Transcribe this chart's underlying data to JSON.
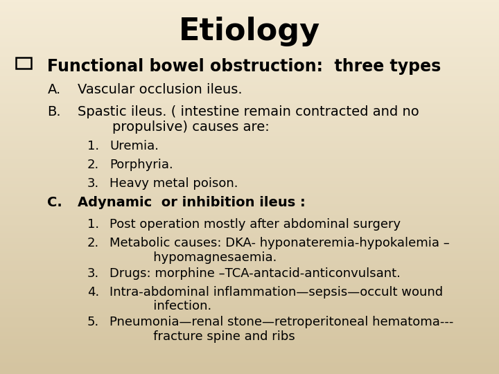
{
  "title": "Etiology",
  "background_color_top": "#f5ecd7",
  "background_color_bottom": "#d4c4a0",
  "title_fontsize": 32,
  "title_fontweight": "bold",
  "text_color": "#000000",
  "content": [
    {
      "level": 0,
      "prefix": "q",
      "text": "Functional bowel obstruction:  three types",
      "bold": true,
      "fontsize": 17
    },
    {
      "level": 1,
      "prefix": "A.",
      "text": "Vascular occlusion ileus.",
      "bold": false,
      "fontsize": 14
    },
    {
      "level": 1,
      "prefix": "B.",
      "text": "Spastic ileus. ( intestine remain contracted and no\n        propulsive) causes are:",
      "bold": false,
      "fontsize": 14
    },
    {
      "level": 2,
      "prefix": "1.",
      "text": "Uremia.",
      "bold": false,
      "fontsize": 13
    },
    {
      "level": 2,
      "prefix": "2.",
      "text": "Porphyria.",
      "bold": false,
      "fontsize": 13
    },
    {
      "level": 2,
      "prefix": "3.",
      "text": "Heavy metal poison.",
      "bold": false,
      "fontsize": 13
    },
    {
      "level": 1,
      "prefix": "C.",
      "text": "Adynamic  or inhibition ileus :",
      "bold": true,
      "fontsize": 14
    },
    {
      "level": 2,
      "prefix": "1.",
      "text": "Post operation mostly after abdominal surgery",
      "bold": false,
      "fontsize": 13
    },
    {
      "level": 2,
      "prefix": "2.",
      "text": "Metabolic causes: DKA- hyponateremia-hypokalemia –\n           hypomagnesaemia.",
      "bold": false,
      "fontsize": 13
    },
    {
      "level": 2,
      "prefix": "3.",
      "text": "Drugs: morphine –TCA-antacid-anticonvulsant.",
      "bold": false,
      "fontsize": 13
    },
    {
      "level": 2,
      "prefix": "4.",
      "text": "Intra-abdominal inflammation—sepsis—occult wound\n           infection.",
      "bold": false,
      "fontsize": 13
    },
    {
      "level": 2,
      "prefix": "5.",
      "text": "Pneumonia—renal stone—retroperitoneal hematoma---\n           fracture spine and ribs",
      "bold": false,
      "fontsize": 13
    }
  ]
}
